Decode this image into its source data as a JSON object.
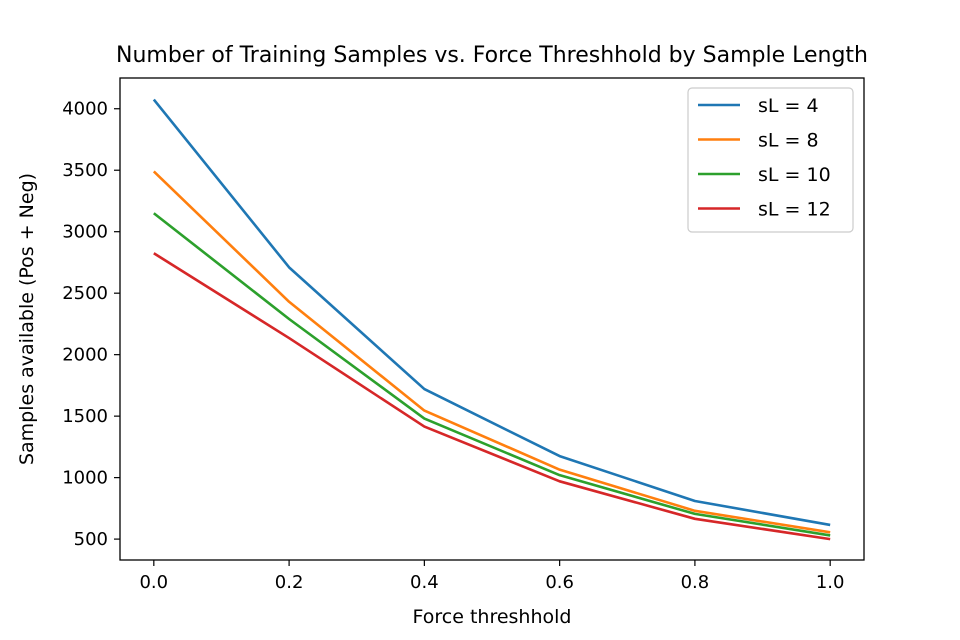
{
  "chart_data": {
    "type": "line",
    "title": "Number of Training Samples vs. Force Threshhold by Sample Length",
    "xlabel": "Force threshhold",
    "ylabel": "Samples available (Pos + Neg)",
    "x": [
      0.0,
      0.2,
      0.4,
      0.6,
      0.8,
      1.0
    ],
    "x_ticks": [
      "0.0",
      "0.2",
      "0.4",
      "0.6",
      "0.8",
      "1.0"
    ],
    "y_ticks": [
      "500",
      "1000",
      "1500",
      "2000",
      "2500",
      "3000",
      "3500",
      "4000"
    ],
    "xlim": [
      -0.05,
      1.05
    ],
    "ylim": [
      330,
      4250
    ],
    "grid": false,
    "legend_position": "top-right",
    "series": [
      {
        "name": "sL = 4",
        "color": "#1f77b4",
        "values": [
          4075,
          2710,
          1720,
          1175,
          810,
          615
        ]
      },
      {
        "name": "sL = 8",
        "color": "#ff7f0e",
        "values": [
          3490,
          2430,
          1545,
          1065,
          730,
          555
        ]
      },
      {
        "name": "sL = 10",
        "color": "#2ca02c",
        "values": [
          3150,
          2290,
          1480,
          1020,
          705,
          530
        ]
      },
      {
        "name": "sL = 12",
        "color": "#d62728",
        "values": [
          2825,
          2135,
          1415,
          970,
          665,
          500
        ]
      }
    ]
  }
}
